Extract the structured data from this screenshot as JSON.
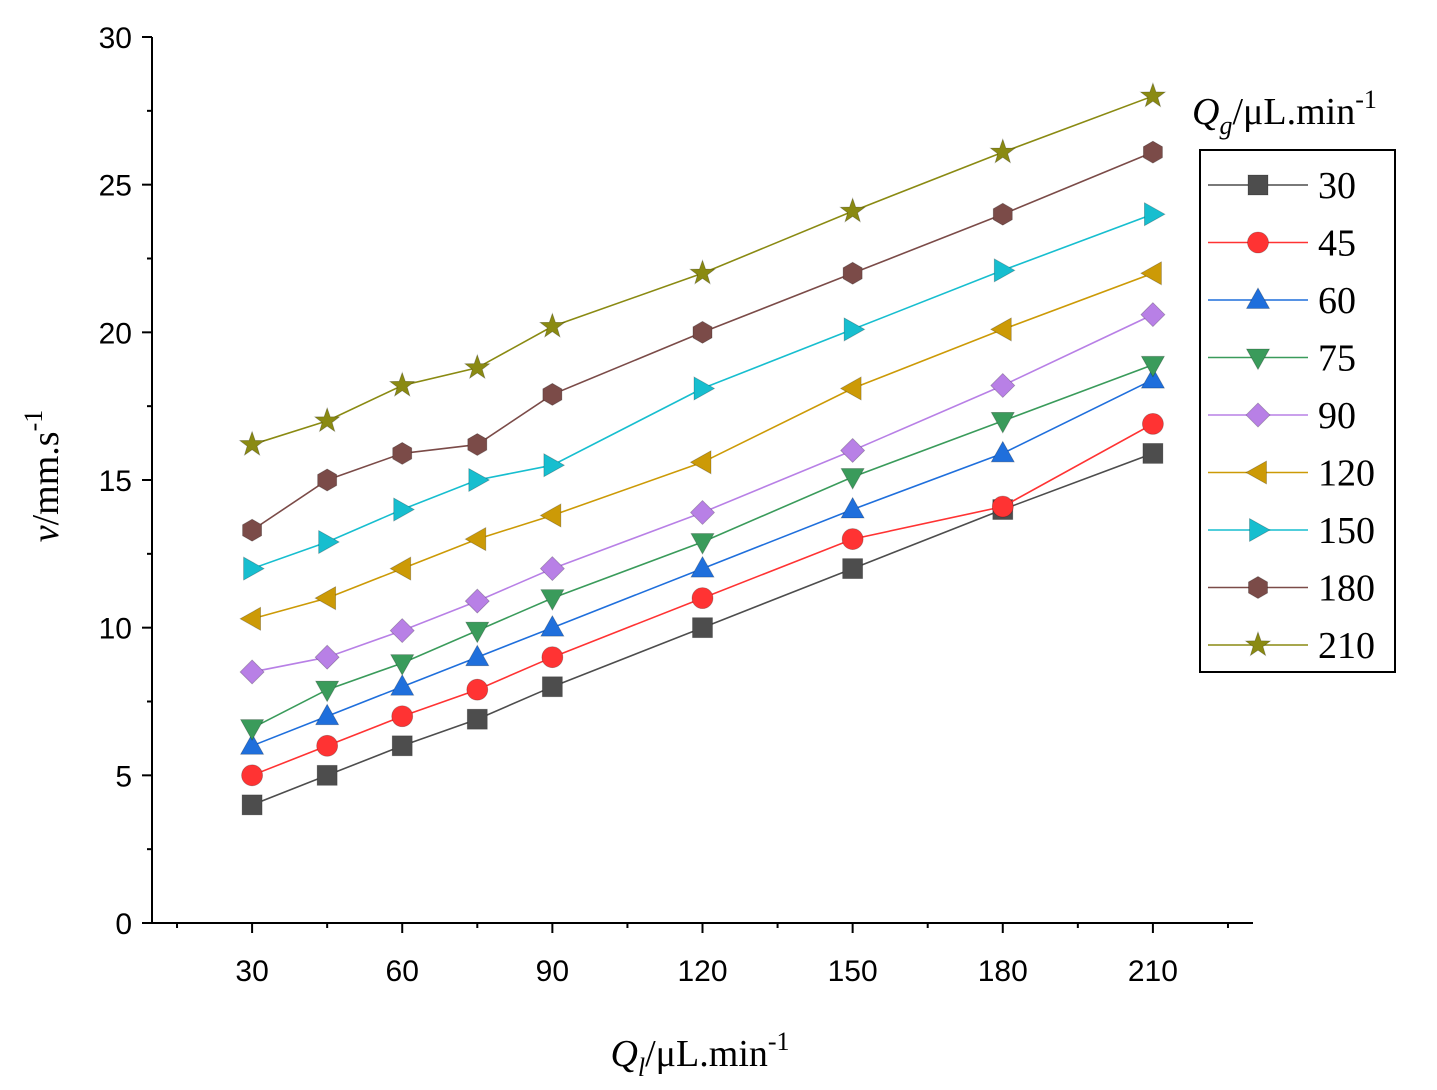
{
  "chart_data": {
    "type": "line",
    "title": "",
    "xlabel": {
      "main": "Q",
      "sub": "l",
      "unit": "/μL.min",
      "sup": "-1"
    },
    "ylabel": {
      "main": "v",
      "unit": "/mm.s",
      "sup": "-1"
    },
    "xlim": [
      10,
      230
    ],
    "ylim": [
      0,
      30
    ],
    "x_ticks": [
      30,
      60,
      90,
      120,
      150,
      180,
      210
    ],
    "x_minor_ticks": [
      15,
      45,
      75,
      105,
      135,
      165,
      195,
      225
    ],
    "y_ticks": [
      0,
      5,
      10,
      15,
      20,
      25,
      30
    ],
    "y_minor_ticks": [
      2.5,
      7.5,
      12.5,
      17.5,
      22.5,
      27.5
    ],
    "x": [
      30,
      45,
      60,
      75,
      90,
      120,
      150,
      180,
      210
    ],
    "legend_title": {
      "main": "Q",
      "sub": "g",
      "unit": "/μL.min",
      "sup": "-1"
    },
    "legend_position": "right",
    "series": [
      {
        "name": "30",
        "color": "#4d4d4d",
        "marker": "square",
        "values": [
          4.0,
          5.0,
          6.0,
          6.9,
          8.0,
          10.0,
          12.0,
          14.0,
          15.9
        ]
      },
      {
        "name": "45",
        "color": "#ff3333",
        "marker": "circle",
        "values": [
          5.0,
          6.0,
          7.0,
          7.9,
          9.0,
          11.0,
          13.0,
          14.1,
          16.9
        ]
      },
      {
        "name": "60",
        "color": "#1f6fdc",
        "marker": "triangle-up",
        "values": [
          6.0,
          7.0,
          8.0,
          9.0,
          10.0,
          12.0,
          14.0,
          15.9,
          18.4
        ]
      },
      {
        "name": "75",
        "color": "#3a9b5b",
        "marker": "triangle-down",
        "values": [
          6.6,
          7.9,
          8.8,
          9.9,
          11.0,
          12.9,
          15.1,
          17.0,
          18.9
        ]
      },
      {
        "name": "90",
        "color": "#b880e6",
        "marker": "diamond",
        "values": [
          8.5,
          9.0,
          9.9,
          10.9,
          12.0,
          13.9,
          16.0,
          18.2,
          20.6
        ]
      },
      {
        "name": "120",
        "color": "#cc9a06",
        "marker": "triangle-left",
        "values": [
          10.3,
          11.0,
          12.0,
          13.0,
          13.8,
          15.6,
          18.1,
          20.1,
          22.0
        ]
      },
      {
        "name": "150",
        "color": "#17becf",
        "marker": "triangle-right",
        "values": [
          12.0,
          12.9,
          14.0,
          15.0,
          15.5,
          18.1,
          20.1,
          22.1,
          24.0
        ]
      },
      {
        "name": "180",
        "color": "#7b4b48",
        "marker": "hexagon",
        "values": [
          13.3,
          15.0,
          15.9,
          16.2,
          17.9,
          20.0,
          22.0,
          24.0,
          26.1
        ]
      },
      {
        "name": "210",
        "color": "#8a8a12",
        "marker": "star",
        "values": [
          16.2,
          17.0,
          18.2,
          18.8,
          20.2,
          22.0,
          24.1,
          26.1,
          28.0
        ]
      }
    ]
  }
}
